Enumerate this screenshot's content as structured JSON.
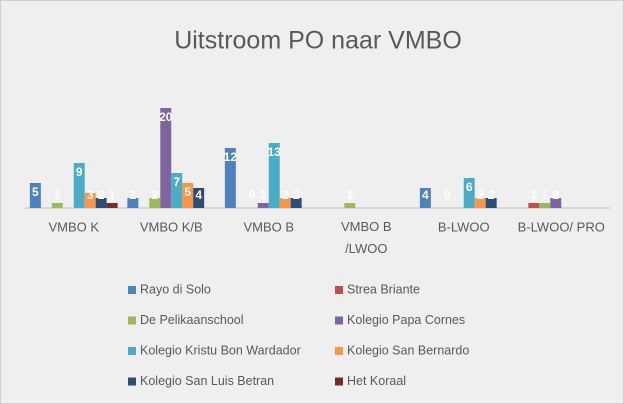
{
  "chart_data": {
    "type": "bar",
    "title": "Uitstroom PO naar VMBO",
    "categories": [
      "VMBO K",
      "VMBO K/B",
      "VMBO B",
      "VMBO B /LWOO",
      "B-LWOO",
      "B-LWOO/ PRO"
    ],
    "series": [
      {
        "name": "Rayo di Solo",
        "color": "#4f81bd",
        "values": [
          5,
          2,
          12,
          null,
          4,
          null
        ]
      },
      {
        "name": "Strea Briante",
        "color": "#c0504d",
        "values": [
          null,
          null,
          null,
          null,
          null,
          1
        ]
      },
      {
        "name": "De Pelikaanschool",
        "color": "#9bbb59",
        "values": [
          1,
          2,
          0,
          1,
          0,
          1
        ]
      },
      {
        "name": "Kolegio Papa Cornes",
        "color": "#8064a2",
        "values": [
          null,
          20,
          1,
          null,
          null,
          2
        ]
      },
      {
        "name": "Kolegio Kristu Bon Wardador",
        "color": "#4bacc6",
        "values": [
          9,
          7,
          13,
          null,
          6,
          null
        ]
      },
      {
        "name": "Kolegio San Bernardo",
        "color": "#f79646",
        "values": [
          3,
          5,
          2,
          null,
          2,
          null
        ]
      },
      {
        "name": "Kolegio San Luis Betran",
        "color": "#2c4d75",
        "values": [
          2,
          4,
          2,
          null,
          2,
          null
        ]
      },
      {
        "name": "Het Koraal",
        "color": "#772c2a",
        "values": [
          1,
          null,
          null,
          null,
          null,
          null
        ]
      }
    ],
    "ylim": [
      0,
      20
    ]
  }
}
